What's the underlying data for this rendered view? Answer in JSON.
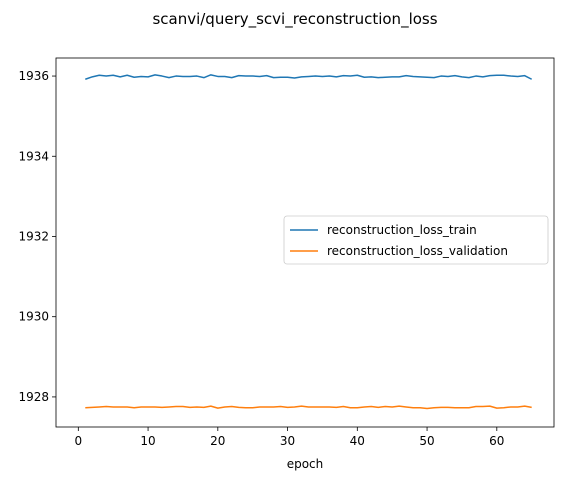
{
  "chart_data": {
    "type": "line",
    "title": "scanvi/query_scvi_reconstruction_loss",
    "xlabel": "epoch",
    "ylabel": "",
    "xlim": [
      -3.2,
      68.2
    ],
    "ylim": [
      1927.25,
      1936.45
    ],
    "xticks": [
      0,
      10,
      20,
      30,
      40,
      50,
      60
    ],
    "yticks": [
      1928,
      1930,
      1932,
      1934,
      1936
    ],
    "x": [
      1,
      2,
      3,
      4,
      5,
      6,
      7,
      8,
      9,
      10,
      11,
      12,
      13,
      14,
      15,
      16,
      17,
      18,
      19,
      20,
      21,
      22,
      23,
      24,
      25,
      26,
      27,
      28,
      29,
      30,
      31,
      32,
      33,
      34,
      35,
      36,
      37,
      38,
      39,
      40,
      41,
      42,
      43,
      44,
      45,
      46,
      47,
      48,
      49,
      50,
      51,
      52,
      53,
      54,
      55,
      56,
      57,
      58,
      59,
      60,
      61,
      62,
      63,
      64,
      65
    ],
    "series": [
      {
        "name": "reconstruction_loss_train",
        "color": "#1f77b4",
        "values": [
          1935.92,
          1935.98,
          1936.02,
          1936.0,
          1936.02,
          1935.98,
          1936.02,
          1935.97,
          1935.99,
          1935.98,
          1936.03,
          1936.0,
          1935.96,
          1936.0,
          1935.99,
          1935.99,
          1936.0,
          1935.96,
          1936.03,
          1935.99,
          1935.99,
          1935.96,
          1936.01,
          1936.0,
          1936.0,
          1935.99,
          1936.01,
          1935.96,
          1935.97,
          1935.97,
          1935.95,
          1935.98,
          1935.99,
          1936.0,
          1935.99,
          1936.0,
          1935.98,
          1936.01,
          1936.0,
          1936.02,
          1935.97,
          1935.98,
          1935.96,
          1935.97,
          1935.98,
          1935.98,
          1936.01,
          1935.99,
          1935.98,
          1935.97,
          1935.96,
          1936.0,
          1935.99,
          1936.01,
          1935.98,
          1935.96,
          1936.0,
          1935.98,
          1936.01,
          1936.02,
          1936.02,
          1936.0,
          1935.99,
          1936.01,
          1935.92
        ]
      },
      {
        "name": "reconstruction_loss_validation",
        "color": "#ff7f0e",
        "values": [
          1927.73,
          1927.74,
          1927.75,
          1927.76,
          1927.75,
          1927.75,
          1927.75,
          1927.73,
          1927.75,
          1927.75,
          1927.75,
          1927.74,
          1927.75,
          1927.76,
          1927.76,
          1927.74,
          1927.75,
          1927.74,
          1927.77,
          1927.72,
          1927.75,
          1927.76,
          1927.74,
          1927.73,
          1927.73,
          1927.75,
          1927.75,
          1927.75,
          1927.76,
          1927.74,
          1927.75,
          1927.77,
          1927.75,
          1927.75,
          1927.75,
          1927.75,
          1927.74,
          1927.76,
          1927.73,
          1927.73,
          1927.75,
          1927.76,
          1927.74,
          1927.76,
          1927.75,
          1927.77,
          1927.75,
          1927.73,
          1927.73,
          1927.71,
          1927.73,
          1927.74,
          1927.74,
          1927.73,
          1927.73,
          1927.73,
          1927.76,
          1927.76,
          1927.77,
          1927.72,
          1927.73,
          1927.75,
          1927.75,
          1927.77,
          1927.74
        ]
      }
    ],
    "legend_position": "center-right"
  }
}
